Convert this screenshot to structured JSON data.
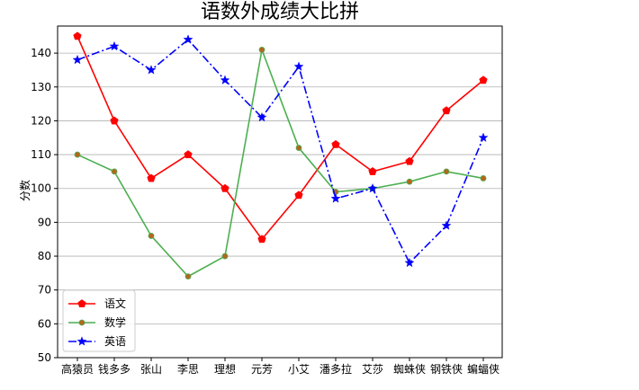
{
  "chart_data": {
    "type": "line",
    "title": "语数外成绩大比拼",
    "xlabel": "",
    "ylabel": "分数",
    "categories": [
      "高猿员",
      "钱多多",
      "张山",
      "李思",
      "理想",
      "元芳",
      "小艾",
      "潘多拉",
      "艾莎",
      "蜘蛛侠",
      "钢铁侠",
      "蝙蝠侠"
    ],
    "ylim": [
      50,
      148
    ],
    "yticks": [
      50,
      60,
      70,
      80,
      90,
      100,
      110,
      120,
      130,
      140
    ],
    "grid": "y",
    "legend_position": "lower-left",
    "series": [
      {
        "name": "语文",
        "values": [
          145,
          120,
          103,
          110,
          100,
          85,
          98,
          113,
          105,
          108,
          123,
          132
        ],
        "color": "#ff0000",
        "marker": "pentagon",
        "linestyle": "solid"
      },
      {
        "name": "数学",
        "values": [
          110,
          105,
          86,
          74,
          80,
          141,
          112,
          99,
          100,
          102,
          105,
          103
        ],
        "color": "#4caf50",
        "marker": "circle",
        "marker_color": "#b5651d",
        "linestyle": "solid"
      },
      {
        "name": "英语",
        "values": [
          138,
          142,
          135,
          144,
          132,
          121,
          136,
          97,
          100,
          78,
          89,
          115
        ],
        "color": "#0000ff",
        "marker": "star",
        "linestyle": "dashdot"
      }
    ]
  }
}
